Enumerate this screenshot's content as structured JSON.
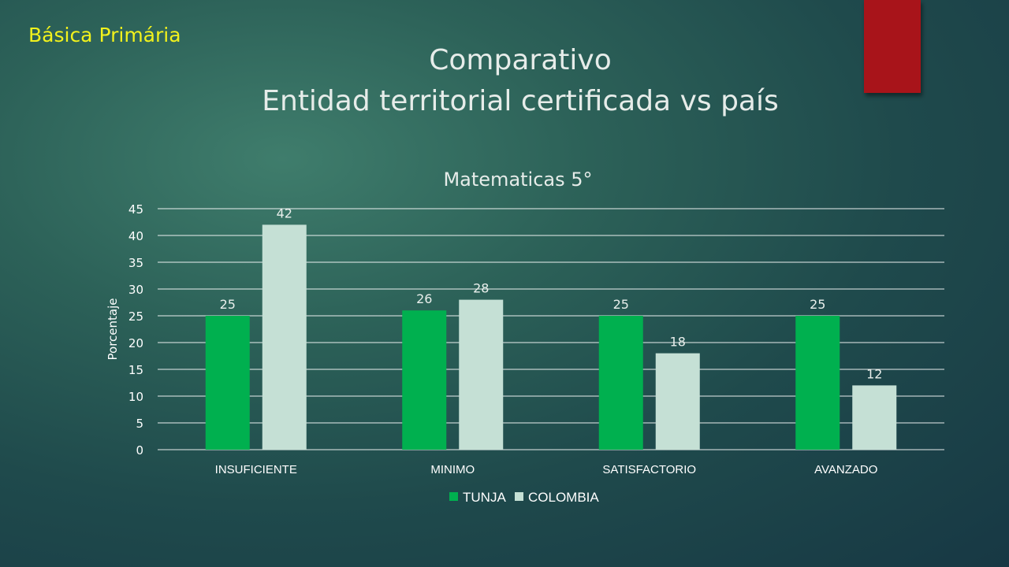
{
  "slide": {
    "tag": "Básica Primária",
    "title_line1": "Comparativo",
    "title_line2": "Entidad territorial certificada vs país"
  },
  "colors": {
    "accent_red": "#a8141a",
    "tag_yellow": "#f2f21c"
  },
  "chart_data": {
    "type": "bar",
    "title": "Matematicas 5°",
    "xlabel": "",
    "ylabel": "Porcentaje",
    "categories": [
      "INSUFICIENTE",
      "MINIMO",
      "SATISFACTORIO",
      "AVANZADO"
    ],
    "series": [
      {
        "name": "TUNJA",
        "values": [
          25,
          26,
          25,
          25
        ],
        "color": "#00b04f"
      },
      {
        "name": "COLOMBIA",
        "values": [
          42,
          28,
          18,
          12
        ],
        "color": "#c5e0d5"
      }
    ],
    "ylim": [
      0,
      45
    ],
    "yticks": [
      0,
      5,
      10,
      15,
      20,
      25,
      30,
      35,
      40,
      45
    ],
    "grid": true,
    "legend": "bottom",
    "data_labels": true
  }
}
